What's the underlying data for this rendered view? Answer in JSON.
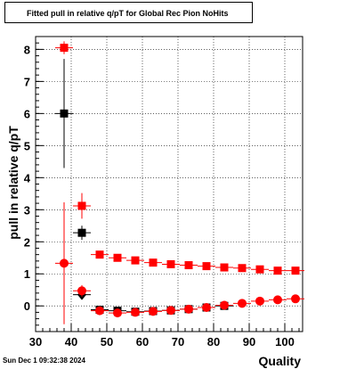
{
  "chart_data": {
    "type": "scatter",
    "title": "Fitted pull in relative q/pT for Global Rec Pion NoHits",
    "xlabel": "Quality",
    "ylabel": "pull in relative q/pT",
    "xlim": [
      30,
      105
    ],
    "ylim": [
      -0.8,
      8.4
    ],
    "x_ticks": [
      30,
      40,
      50,
      60,
      70,
      80,
      90,
      100
    ],
    "y_ticks": [
      0,
      1,
      2,
      3,
      4,
      5,
      6,
      7,
      8
    ],
    "grid": true,
    "series": [
      {
        "color": "#000000",
        "marker": "square",
        "points": [
          {
            "x": 38,
            "y": 6.0,
            "err": 1.7
          },
          {
            "x": 43,
            "y": 2.28,
            "err": 0.22
          },
          {
            "x": 48,
            "y": -0.12,
            "err": 0.06
          },
          {
            "x": 53,
            "y": -0.15,
            "err": 0.05
          },
          {
            "x": 58,
            "y": -0.18,
            "err": 0.04
          },
          {
            "x": 63,
            "y": -0.16,
            "err": 0.04
          },
          {
            "x": 68,
            "y": -0.14,
            "err": 0.04
          },
          {
            "x": 73,
            "y": -0.1,
            "err": 0.03
          },
          {
            "x": 78,
            "y": -0.05,
            "err": 0.03
          },
          {
            "x": 83,
            "y": 0.0,
            "err": 0.03
          }
        ]
      },
      {
        "color": "#ff0000",
        "marker": "square",
        "points": [
          {
            "x": 38,
            "y": 8.05,
            "err": 0.2
          },
          {
            "x": 43,
            "y": 3.12,
            "err": 0.4
          },
          {
            "x": 48,
            "y": 1.6,
            "err": 0.07
          },
          {
            "x": 53,
            "y": 1.5,
            "err": 0.05
          },
          {
            "x": 58,
            "y": 1.42,
            "err": 0.04
          },
          {
            "x": 63,
            "y": 1.35,
            "err": 0.04
          },
          {
            "x": 68,
            "y": 1.3,
            "err": 0.04
          },
          {
            "x": 73,
            "y": 1.27,
            "err": 0.03
          },
          {
            "x": 78,
            "y": 1.24,
            "err": 0.03
          },
          {
            "x": 83,
            "y": 1.2,
            "err": 0.03
          },
          {
            "x": 88,
            "y": 1.18,
            "err": 0.03
          },
          {
            "x": 93,
            "y": 1.14,
            "err": 0.03
          },
          {
            "x": 98,
            "y": 1.1,
            "err": 0.03
          },
          {
            "x": 103,
            "y": 1.1,
            "err": 0.03
          }
        ]
      },
      {
        "color": "#000000",
        "marker": "diamond",
        "points": [
          {
            "x": 43,
            "y": 0.35,
            "err": 0.1
          }
        ]
      },
      {
        "color": "#ff0000",
        "marker": "circle",
        "points": [
          {
            "x": 38,
            "y": 1.33,
            "err": 1.9
          },
          {
            "x": 43,
            "y": 0.47,
            "err": 0.18
          },
          {
            "x": 48,
            "y": -0.15,
            "err": 0.05
          },
          {
            "x": 53,
            "y": -0.22,
            "err": 0.04
          },
          {
            "x": 58,
            "y": -0.2,
            "err": 0.04
          },
          {
            "x": 63,
            "y": -0.17,
            "err": 0.04
          },
          {
            "x": 68,
            "y": -0.14,
            "err": 0.03
          },
          {
            "x": 73,
            "y": -0.1,
            "err": 0.03
          },
          {
            "x": 78,
            "y": -0.05,
            "err": 0.03
          },
          {
            "x": 83,
            "y": 0.02,
            "err": 0.03
          },
          {
            "x": 88,
            "y": 0.08,
            "err": 0.03
          },
          {
            "x": 93,
            "y": 0.15,
            "err": 0.03
          },
          {
            "x": 98,
            "y": 0.19,
            "err": 0.03
          },
          {
            "x": 103,
            "y": 0.22,
            "err": 0.03
          }
        ]
      }
    ]
  },
  "footer": {
    "timestamp": "Sun Dec  1 09:32:38 2024"
  }
}
